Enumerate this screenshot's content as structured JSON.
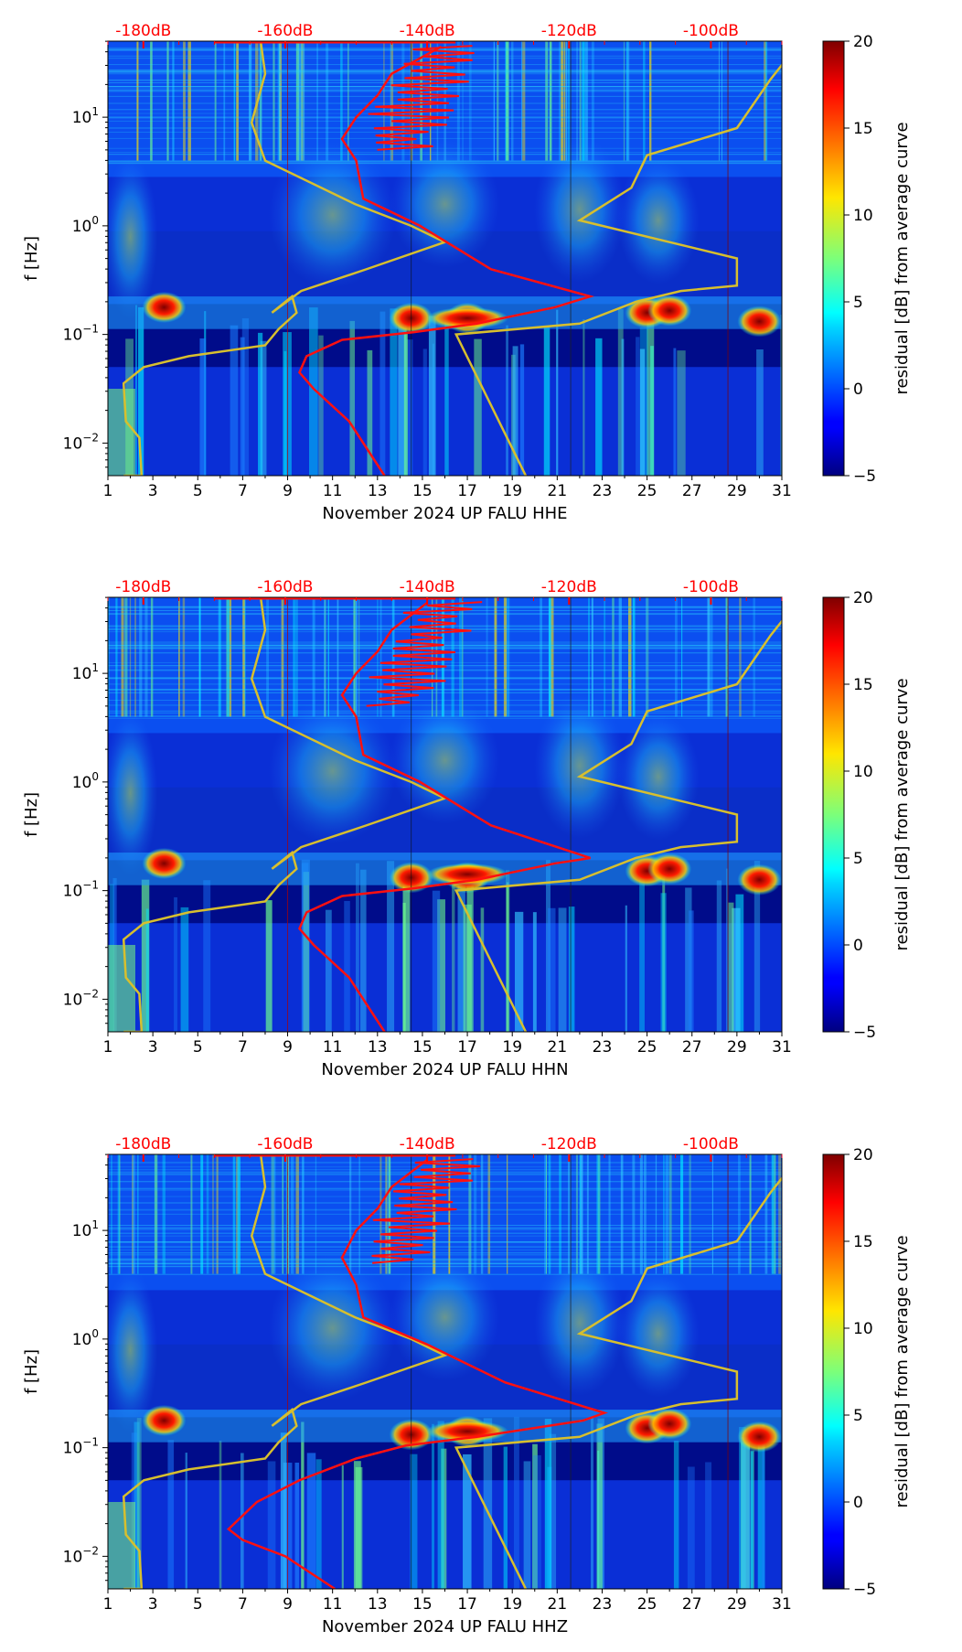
{
  "chart_data": [
    {
      "type": "heatmap",
      "channel": "HHE",
      "xlabel": "November 2024 UP FALU  HHE",
      "ylabel": "f [Hz]",
      "x_ticks": [
        "1",
        "3",
        "5",
        "7",
        "9",
        "11",
        "13",
        "15",
        "17",
        "19",
        "21",
        "23",
        "25",
        "27",
        "29",
        "31"
      ],
      "y_ticks": [
        "10^-2",
        "10^-1",
        "10^0",
        "10^1"
      ],
      "top_db_ticks": [
        "-180dB",
        "-160dB",
        "-140dB",
        "-120dB",
        "-100dB"
      ],
      "colorbar": {
        "label": "residual [dB] from average curve",
        "ticks": [
          "−5",
          "0",
          "5",
          "10",
          "15",
          "20"
        ],
        "range": [
          -5,
          20
        ]
      },
      "red_curve_db_to_logf": [
        [
          -146,
          -2.3
        ],
        [
          -151,
          -1.8
        ],
        [
          -156,
          -1.5
        ],
        [
          -158,
          -1.35
        ],
        [
          -157,
          -1.2
        ],
        [
          -152,
          -1.05
        ],
        [
          -142,
          -0.98
        ],
        [
          -133,
          -0.9
        ],
        [
          -122,
          -0.75
        ],
        [
          -117,
          -0.65
        ],
        [
          -131,
          -0.4
        ],
        [
          -141,
          0.0
        ],
        [
          -149,
          0.25
        ],
        [
          -150,
          0.6
        ],
        [
          -152,
          0.8
        ],
        [
          -150,
          1.0
        ],
        [
          -147,
          1.2
        ],
        [
          -145,
          1.4
        ],
        [
          -138,
          1.65
        ]
      ],
      "hot_spots": [
        [
          3.5,
          -0.75
        ],
        [
          14.5,
          -0.85
        ],
        [
          17,
          -0.85
        ],
        [
          25,
          -0.8
        ],
        [
          26,
          -0.78
        ],
        [
          30,
          -0.88
        ]
      ]
    },
    {
      "type": "heatmap",
      "channel": "HHN",
      "xlabel": "November 2024 UP FALU  HHN",
      "ylabel": "f [Hz]",
      "x_ticks": [
        "1",
        "3",
        "5",
        "7",
        "9",
        "11",
        "13",
        "15",
        "17",
        "19",
        "21",
        "23",
        "25",
        "27",
        "29",
        "31"
      ],
      "y_ticks": [
        "10^-2",
        "10^-1",
        "10^0",
        "10^1"
      ],
      "top_db_ticks": [
        "-180dB",
        "-160dB",
        "-140dB",
        "-120dB",
        "-100dB"
      ],
      "colorbar": {
        "label": "residual [dB] from average curve",
        "ticks": [
          "−5",
          "0",
          "5",
          "10",
          "15",
          "20"
        ],
        "range": [
          -5,
          20
        ]
      },
      "red_curve_db_to_logf": [
        [
          -146,
          -2.3
        ],
        [
          -151,
          -1.8
        ],
        [
          -156,
          -1.5
        ],
        [
          -158,
          -1.35
        ],
        [
          -157,
          -1.2
        ],
        [
          -152,
          -1.05
        ],
        [
          -142,
          -0.98
        ],
        [
          -133,
          -0.9
        ],
        [
          -122,
          -0.75
        ],
        [
          -117,
          -0.7
        ],
        [
          -131,
          -0.4
        ],
        [
          -141,
          0.0
        ],
        [
          -149,
          0.25
        ],
        [
          -150,
          0.6
        ],
        [
          -152,
          0.8
        ],
        [
          -150,
          1.0
        ],
        [
          -147,
          1.2
        ],
        [
          -145,
          1.4
        ],
        [
          -140,
          1.65
        ]
      ],
      "hot_spots": [
        [
          3.5,
          -0.75
        ],
        [
          14.5,
          -0.88
        ],
        [
          17,
          -0.88
        ],
        [
          25,
          -0.82
        ],
        [
          26,
          -0.8
        ],
        [
          30,
          -0.9
        ]
      ]
    },
    {
      "type": "heatmap",
      "channel": "HHZ",
      "xlabel": "November 2024 UP FALU  HHZ",
      "ylabel": "f [Hz]",
      "x_ticks": [
        "1",
        "3",
        "5",
        "7",
        "9",
        "11",
        "13",
        "15",
        "17",
        "19",
        "21",
        "23",
        "25",
        "27",
        "29",
        "31"
      ],
      "y_ticks": [
        "10^-2",
        "10^-1",
        "10^0",
        "10^1"
      ],
      "top_db_ticks": [
        "-180dB",
        "-160dB",
        "-140dB",
        "-120dB",
        "-100dB"
      ],
      "colorbar": {
        "label": "residual [dB] from average curve",
        "ticks": [
          "−5",
          "0",
          "5",
          "10",
          "15",
          "20"
        ],
        "range": [
          -5,
          20
        ]
      },
      "red_curve_db_to_logf": [
        [
          -153,
          -2.3
        ],
        [
          -160,
          -2.0
        ],
        [
          -166,
          -1.85
        ],
        [
          -168,
          -1.75
        ],
        [
          -164,
          -1.5
        ],
        [
          -158,
          -1.3
        ],
        [
          -150,
          -1.1
        ],
        [
          -143,
          -0.98
        ],
        [
          -133,
          -0.9
        ],
        [
          -118,
          -0.75
        ],
        [
          -115,
          -0.68
        ],
        [
          -129,
          -0.4
        ],
        [
          -140,
          -0.05
        ],
        [
          -149,
          0.2
        ],
        [
          -150,
          0.5
        ],
        [
          -152,
          0.75
        ],
        [
          -150,
          1.0
        ],
        [
          -147,
          1.2
        ],
        [
          -145,
          1.4
        ],
        [
          -140,
          1.65
        ]
      ],
      "hot_spots": [
        [
          3.5,
          -0.75
        ],
        [
          14.5,
          -0.88
        ],
        [
          17,
          -0.85
        ],
        [
          25,
          -0.82
        ],
        [
          26,
          -0.78
        ],
        [
          30,
          -0.9
        ]
      ]
    }
  ]
}
